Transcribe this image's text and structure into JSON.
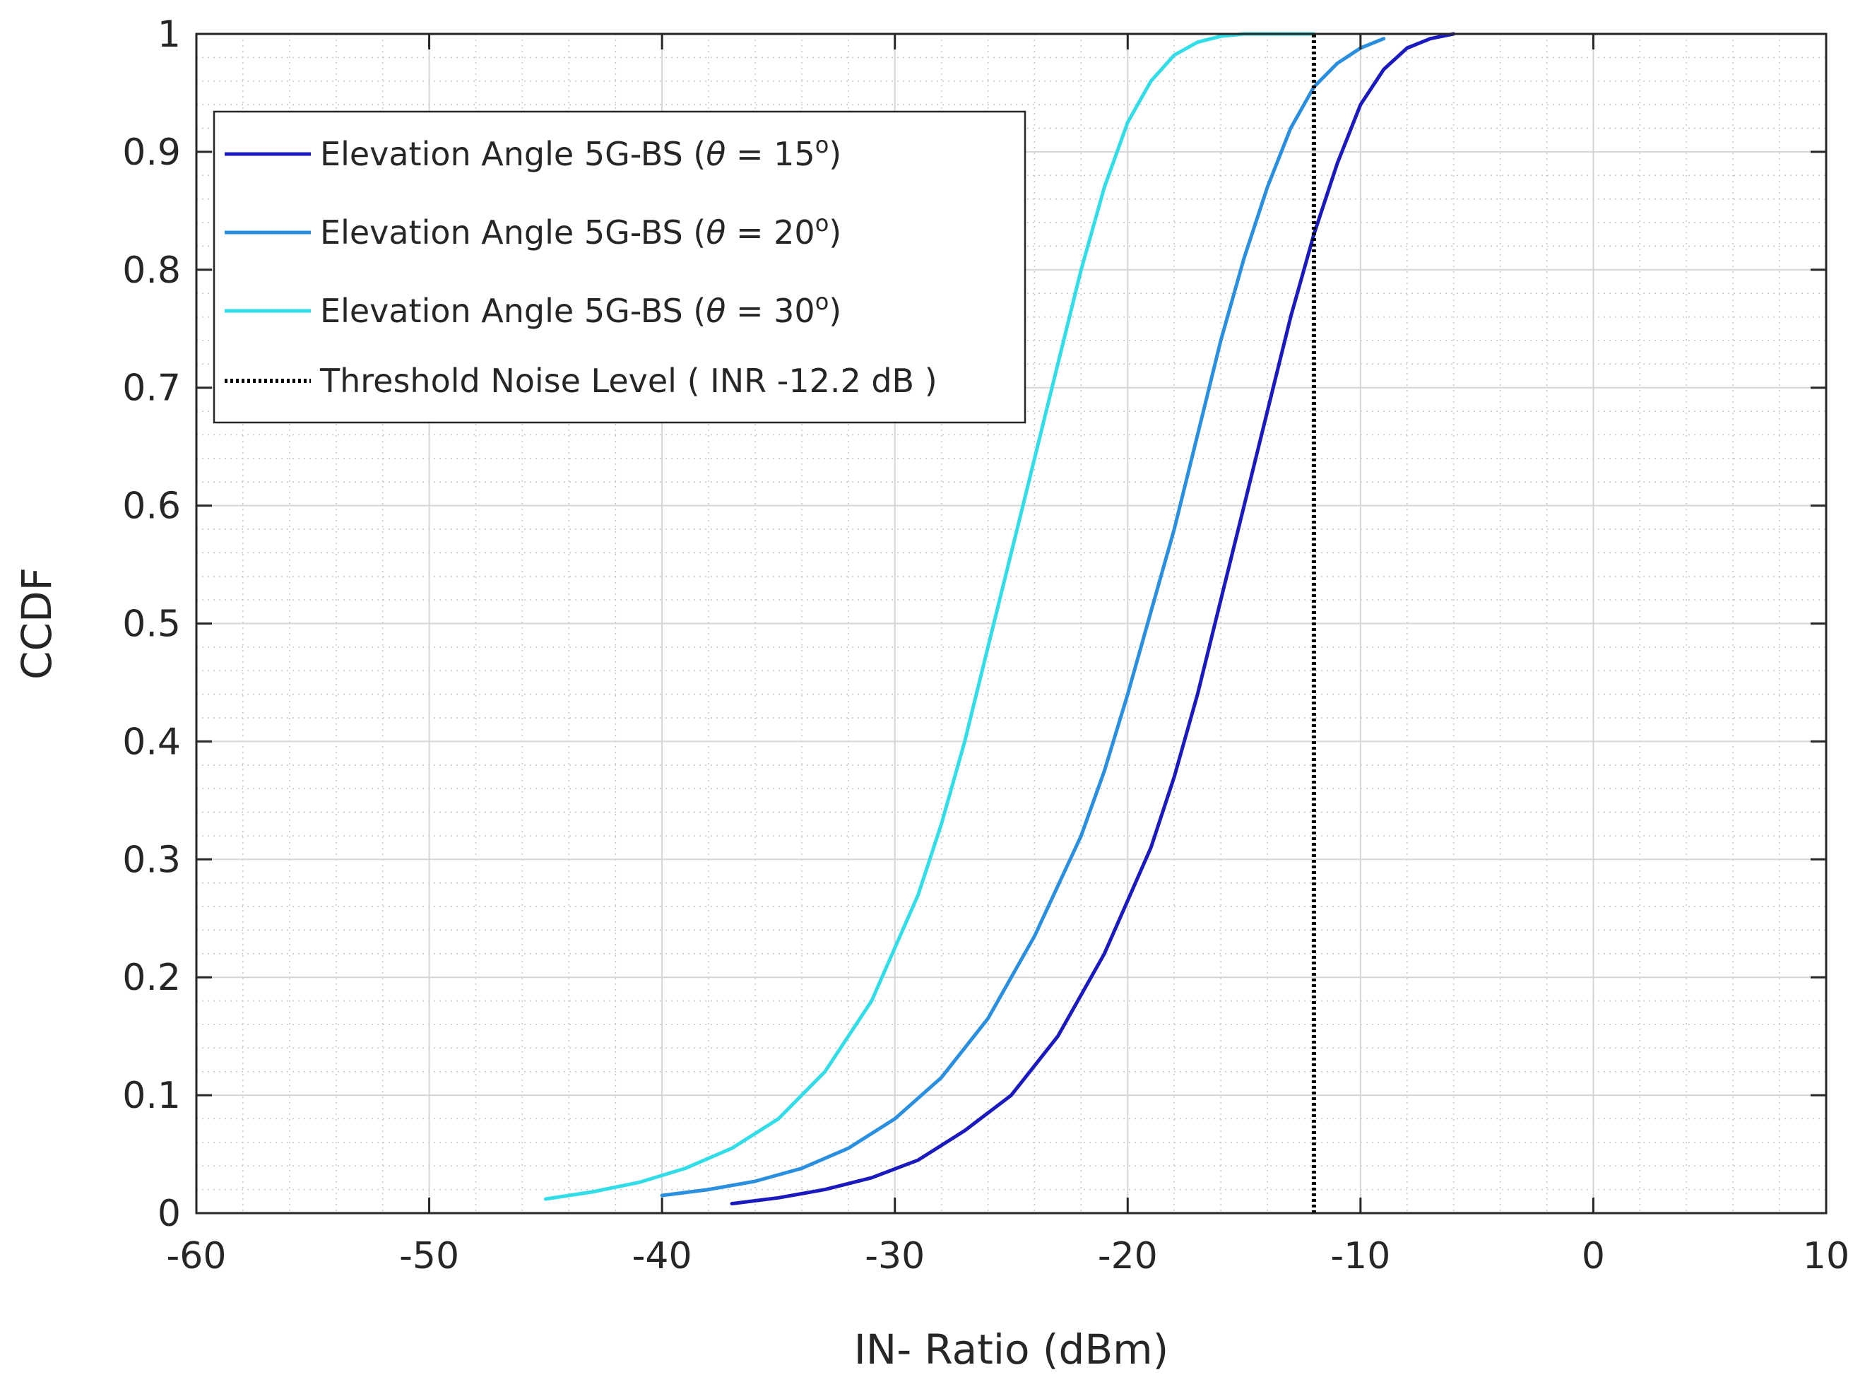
{
  "chart_data": {
    "type": "line",
    "title": "",
    "xlabel": "IN- Ratio (dBm)",
    "ylabel": "CCDF",
    "xlim": [
      -60,
      10
    ],
    "ylim": [
      0,
      1
    ],
    "grid": true,
    "minor_grid": true,
    "legend_position": "top-left",
    "x_ticks": [
      "-60",
      "-50",
      "-40",
      "-30",
      "-20",
      "-10",
      "0",
      "10"
    ],
    "x_tick_values": [
      -60,
      -50,
      -40,
      -30,
      -20,
      -10,
      0,
      10
    ],
    "y_ticks": [
      "0",
      "0.1",
      "0.2",
      "0.3",
      "0.4",
      "0.5",
      "0.6",
      "0.7",
      "0.8",
      "0.9",
      "1"
    ],
    "y_tick_values": [
      0,
      0.1,
      0.2,
      0.3,
      0.4,
      0.5,
      0.6,
      0.7,
      0.8,
      0.9,
      1
    ],
    "series": [
      {
        "name": "Elevation Angle 5G-BS",
        "theta": "15",
        "color": "#1a1abf",
        "dash": "solid",
        "x": [
          -37,
          -35,
          -33,
          -31,
          -29,
          -27,
          -25,
          -23,
          -21,
          -19,
          -18,
          -17,
          -16,
          -15,
          -14,
          -13,
          -12,
          -11,
          -10,
          -9,
          -8,
          -7,
          -6
        ],
        "y": [
          0.008,
          0.013,
          0.02,
          0.03,
          0.045,
          0.07,
          0.1,
          0.15,
          0.22,
          0.31,
          0.37,
          0.44,
          0.52,
          0.6,
          0.68,
          0.76,
          0.83,
          0.89,
          0.94,
          0.97,
          0.988,
          0.996,
          1.0
        ]
      },
      {
        "name": "Elevation Angle 5G-BS",
        "theta": "20",
        "color": "#2b8fe0",
        "dash": "solid",
        "x": [
          -40,
          -38,
          -36,
          -34,
          -32,
          -30,
          -28,
          -26,
          -24,
          -22,
          -21,
          -20,
          -19,
          -18,
          -17,
          -16,
          -15,
          -14,
          -13,
          -12,
          -11,
          -10,
          -9
        ],
        "y": [
          0.015,
          0.02,
          0.027,
          0.038,
          0.055,
          0.08,
          0.115,
          0.165,
          0.235,
          0.32,
          0.375,
          0.44,
          0.51,
          0.58,
          0.66,
          0.74,
          0.81,
          0.87,
          0.92,
          0.955,
          0.975,
          0.988,
          0.996
        ]
      },
      {
        "name": "Elevation Angle 5G-BS",
        "theta": "30",
        "color": "#33dde8",
        "dash": "solid",
        "x": [
          -45,
          -43,
          -41,
          -39,
          -37,
          -35,
          -33,
          -31,
          -29,
          -28,
          -27,
          -26,
          -25,
          -24,
          -23,
          -22,
          -21,
          -20,
          -19,
          -18,
          -17,
          -16,
          -15,
          -14,
          -13,
          -12
        ],
        "y": [
          0.012,
          0.018,
          0.026,
          0.038,
          0.055,
          0.08,
          0.12,
          0.18,
          0.27,
          0.33,
          0.4,
          0.48,
          0.56,
          0.64,
          0.72,
          0.8,
          0.87,
          0.925,
          0.96,
          0.982,
          0.993,
          0.998,
          1.0,
          1.0,
          1.0,
          1.0
        ]
      },
      {
        "name": "Threshold Noise Level ( INR -12.2 dB )",
        "color": "#000000",
        "dash": "dotted",
        "x": [
          -12,
          -12
        ],
        "y": [
          0,
          1
        ]
      }
    ]
  }
}
